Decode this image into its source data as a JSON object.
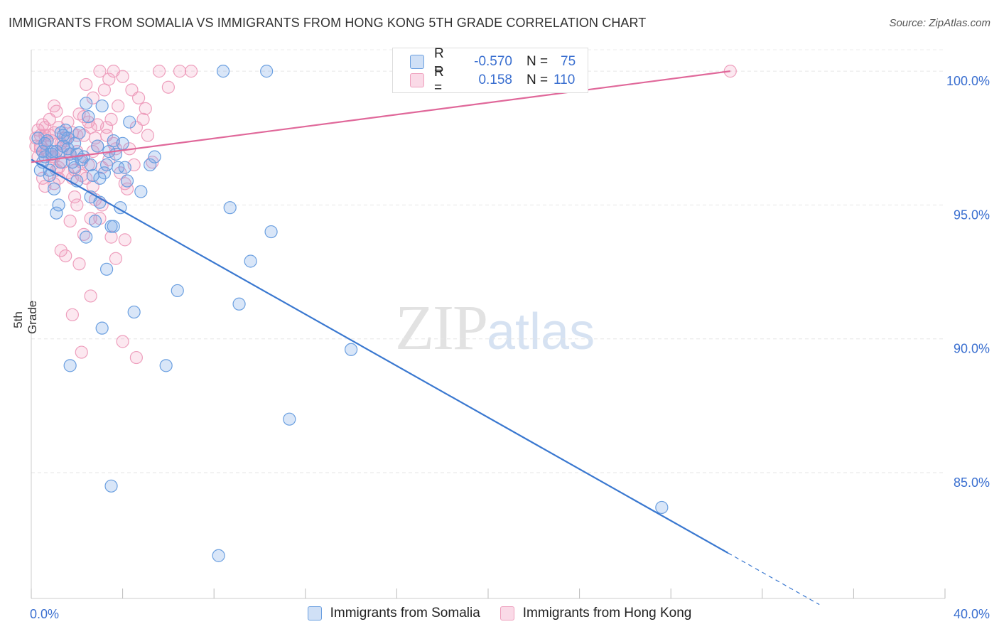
{
  "chart_data": {
    "type": "scatter",
    "title": "IMMIGRANTS FROM SOMALIA VS IMMIGRANTS FROM HONG KONG 5TH GRADE CORRELATION CHART",
    "source": "Source: ZipAtlas.com",
    "ylabel": "5th Grade",
    "xlabel": "",
    "xlim": [
      0,
      40
    ],
    "ylim": [
      80.3,
      100.8
    ],
    "x_tick_labels": [
      "0.0%",
      "40.0%"
    ],
    "y_ticks": [
      85,
      90,
      95,
      100
    ],
    "y_tick_labels": [
      "85.0%",
      "90.0%",
      "95.0%",
      "100.0%"
    ],
    "grid": true,
    "watermark": {
      "zip": "ZIP",
      "atlas": "atlas"
    },
    "legend": {
      "rows": [
        {
          "r_label": "R =",
          "r_value": "-0.570",
          "n_label": "N =",
          "n_value": "75"
        },
        {
          "r_label": "R =",
          "r_value": "0.158",
          "n_label": "N =",
          "n_value": "110"
        }
      ]
    },
    "series": [
      {
        "name": "Immigrants from Somalia",
        "color": "#6a9fe0",
        "fill": "rgba(120,165,230,0.28)",
        "line_color": "#3a78d0",
        "trend": {
          "x0": 0,
          "y0": 96.7,
          "x1": 30.5,
          "y1": 82.0,
          "dash_to_x": 34.5
        },
        "points": [
          [
            0.3,
            97.5
          ],
          [
            0.4,
            96.3
          ],
          [
            0.5,
            97.0
          ],
          [
            0.6,
            96.8
          ],
          [
            0.7,
            97.4
          ],
          [
            0.8,
            96.1
          ],
          [
            0.9,
            97.0
          ],
          [
            1.0,
            95.6
          ],
          [
            1.1,
            94.7
          ],
          [
            1.2,
            95.0
          ],
          [
            1.3,
            97.7
          ],
          [
            1.4,
            97.2
          ],
          [
            1.5,
            97.8
          ],
          [
            1.6,
            97.5
          ],
          [
            1.7,
            96.9
          ],
          [
            1.8,
            96.6
          ],
          [
            1.9,
            96.4
          ],
          [
            2.0,
            95.9
          ],
          [
            2.1,
            97.7
          ],
          [
            2.3,
            96.8
          ],
          [
            2.4,
            98.8
          ],
          [
            2.5,
            98.3
          ],
          [
            2.6,
            95.3
          ],
          [
            2.7,
            96.1
          ],
          [
            2.8,
            94.4
          ],
          [
            2.9,
            97.2
          ],
          [
            3.0,
            95.1
          ],
          [
            3.1,
            98.7
          ],
          [
            3.2,
            96.2
          ],
          [
            3.3,
            96.5
          ],
          [
            3.4,
            97.0
          ],
          [
            3.5,
            94.2
          ],
          [
            3.6,
            97.4
          ],
          [
            3.7,
            96.9
          ],
          [
            3.8,
            96.4
          ],
          [
            3.9,
            94.9
          ],
          [
            4.0,
            97.3
          ],
          [
            4.1,
            96.4
          ],
          [
            4.2,
            95.9
          ],
          [
            4.3,
            98.1
          ],
          [
            4.5,
            91.0
          ],
          [
            4.8,
            95.5
          ],
          [
            5.2,
            96.5
          ],
          [
            5.4,
            96.8
          ],
          [
            2.4,
            93.8
          ],
          [
            3.3,
            92.6
          ],
          [
            3.1,
            90.4
          ],
          [
            1.7,
            89.0
          ],
          [
            6.4,
            91.8
          ],
          [
            5.9,
            89.0
          ],
          [
            3.5,
            84.5
          ],
          [
            8.2,
            81.9
          ],
          [
            10.3,
            100.0
          ],
          [
            8.4,
            100.0
          ],
          [
            8.7,
            94.9
          ],
          [
            9.1,
            91.3
          ],
          [
            9.6,
            92.9
          ],
          [
            10.5,
            94.0
          ],
          [
            11.3,
            87.0
          ],
          [
            14.0,
            89.6
          ],
          [
            27.6,
            83.7
          ],
          [
            3.6,
            94.2
          ],
          [
            0.9,
            96.9
          ],
          [
            1.1,
            97.0
          ],
          [
            1.3,
            96.6
          ],
          [
            1.6,
            97.1
          ],
          [
            0.6,
            97.3
          ],
          [
            0.5,
            96.6
          ],
          [
            2.2,
            96.7
          ],
          [
            2.0,
            96.9
          ],
          [
            3.0,
            96.0
          ],
          [
            1.9,
            97.3
          ],
          [
            0.8,
            96.3
          ],
          [
            1.4,
            97.6
          ],
          [
            2.6,
            96.5
          ]
        ]
      },
      {
        "name": "Immigrants from Hong Kong",
        "color": "#ee9fbd",
        "fill": "rgba(240,150,185,0.22)",
        "line_color": "#e0689a",
        "trend": {
          "x0": 0,
          "y0": 96.6,
          "x1": 30.6,
          "y1": 100.0
        },
        "points": [
          [
            0.2,
            97.5
          ],
          [
            0.3,
            97.8
          ],
          [
            0.4,
            97.2
          ],
          [
            0.5,
            98.0
          ],
          [
            0.6,
            97.6
          ],
          [
            0.7,
            97.0
          ],
          [
            0.8,
            98.2
          ],
          [
            0.9,
            97.4
          ],
          [
            1.0,
            96.8
          ],
          [
            1.1,
            98.5
          ],
          [
            1.2,
            97.9
          ],
          [
            1.3,
            97.3
          ],
          [
            1.4,
            96.6
          ],
          [
            1.5,
            97.5
          ],
          [
            1.6,
            98.1
          ],
          [
            1.7,
            96.9
          ],
          [
            1.8,
            97.7
          ],
          [
            1.9,
            96.3
          ],
          [
            2.0,
            97.0
          ],
          [
            2.1,
            98.4
          ],
          [
            2.2,
            96.1
          ],
          [
            2.3,
            97.6
          ],
          [
            2.4,
            99.5
          ],
          [
            2.5,
            96.5
          ],
          [
            2.6,
            97.9
          ],
          [
            2.7,
            99.0
          ],
          [
            2.8,
            95.2
          ],
          [
            2.9,
            98.0
          ],
          [
            3.0,
            100.0
          ],
          [
            3.1,
            96.4
          ],
          [
            3.2,
            99.3
          ],
          [
            3.3,
            97.6
          ],
          [
            3.4,
            96.7
          ],
          [
            3.5,
            98.2
          ],
          [
            3.6,
            100.0
          ],
          [
            3.7,
            97.1
          ],
          [
            3.8,
            98.7
          ],
          [
            3.9,
            96.2
          ],
          [
            4.0,
            99.8
          ],
          [
            4.1,
            95.8
          ],
          [
            4.3,
            97.1
          ],
          [
            4.4,
            99.3
          ],
          [
            4.5,
            96.5
          ],
          [
            4.7,
            99.0
          ],
          [
            4.9,
            98.2
          ],
          [
            5.1,
            97.6
          ],
          [
            5.3,
            96.6
          ],
          [
            5.6,
            100.0
          ],
          [
            6.0,
            99.4
          ],
          [
            6.5,
            100.0
          ],
          [
            7.0,
            100.0
          ],
          [
            1.0,
            95.8
          ],
          [
            1.3,
            93.3
          ],
          [
            1.5,
            93.1
          ],
          [
            1.7,
            94.4
          ],
          [
            2.1,
            92.8
          ],
          [
            2.3,
            93.9
          ],
          [
            2.6,
            94.5
          ],
          [
            1.8,
            90.9
          ],
          [
            2.2,
            89.5
          ],
          [
            2.6,
            91.6
          ],
          [
            3.5,
            93.8
          ],
          [
            3.7,
            93.0
          ],
          [
            4.0,
            89.9
          ],
          [
            4.6,
            89.3
          ],
          [
            4.1,
            93.7
          ],
          [
            3.1,
            95.0
          ],
          [
            2.7,
            95.7
          ],
          [
            0.5,
            96.0
          ],
          [
            0.6,
            95.7
          ],
          [
            0.9,
            96.5
          ],
          [
            1.2,
            96.0
          ],
          [
            1.6,
            96.2
          ],
          [
            1.9,
            95.3
          ],
          [
            2.4,
            96.0
          ],
          [
            0.3,
            96.8
          ],
          [
            0.4,
            97.1
          ],
          [
            0.7,
            97.4
          ],
          [
            0.8,
            97.6
          ],
          [
            1.0,
            97.7
          ],
          [
            1.1,
            97.0
          ],
          [
            1.4,
            97.2
          ],
          [
            1.7,
            96.9
          ],
          [
            2.0,
            97.6
          ],
          [
            2.3,
            98.3
          ],
          [
            2.5,
            98.1
          ],
          [
            2.8,
            97.5
          ],
          [
            3.3,
            97.9
          ],
          [
            3.6,
            97.3
          ],
          [
            1.3,
            97.0
          ],
          [
            0.2,
            97.2
          ],
          [
            0.4,
            97.6
          ],
          [
            0.6,
            97.9
          ],
          [
            0.9,
            96.8
          ],
          [
            1.2,
            96.4
          ],
          [
            1.5,
            97.4
          ],
          [
            2.2,
            96.6
          ],
          [
            2.9,
            97.2
          ],
          [
            3.4,
            99.7
          ],
          [
            1.0,
            98.7
          ],
          [
            4.2,
            95.6
          ],
          [
            2.0,
            95.0
          ],
          [
            3.0,
            94.5
          ],
          [
            4.6,
            97.9
          ],
          [
            5.0,
            98.6
          ],
          [
            1.1,
            96.3
          ],
          [
            30.6,
            100.0
          ],
          [
            0.5,
            97.0
          ],
          [
            1.8,
            96.0
          ],
          [
            2.7,
            97.0
          ]
        ]
      }
    ]
  }
}
